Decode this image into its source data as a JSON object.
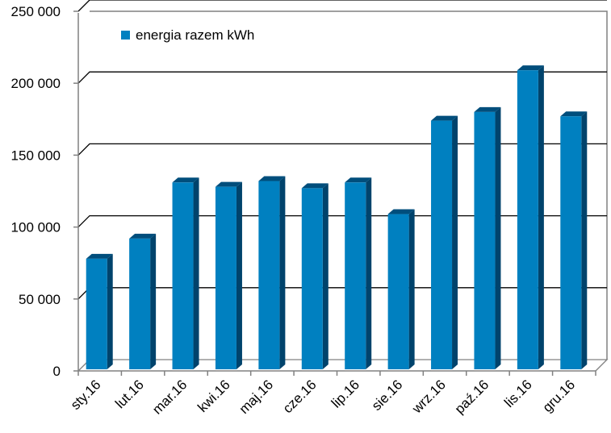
{
  "chart_data": {
    "type": "bar",
    "title": "",
    "xlabel": "",
    "ylabel": "",
    "categories": [
      "sty.16",
      "lut.16",
      "mar.16",
      "kwi.16",
      "maj.16",
      "cze.16",
      "lip.16",
      "sie.16",
      "wrz.16",
      "paź.16",
      "lis.16",
      "gru.16"
    ],
    "series": [
      {
        "name": "energia razem kWh",
        "values": [
          78000,
          92000,
          131000,
          128000,
          132000,
          127000,
          131000,
          109000,
          174000,
          180000,
          209000,
          177000
        ],
        "color": "#0080c0"
      }
    ],
    "ylim": [
      0,
      250000
    ],
    "yticks": [
      0,
      50000,
      100000,
      150000,
      200000,
      250000
    ],
    "ytick_labels": [
      "0",
      "50 000",
      "100 000",
      "150 000",
      "200 000",
      "250 000"
    ],
    "grid": true,
    "legend_position": "top-left",
    "three_d": true
  }
}
